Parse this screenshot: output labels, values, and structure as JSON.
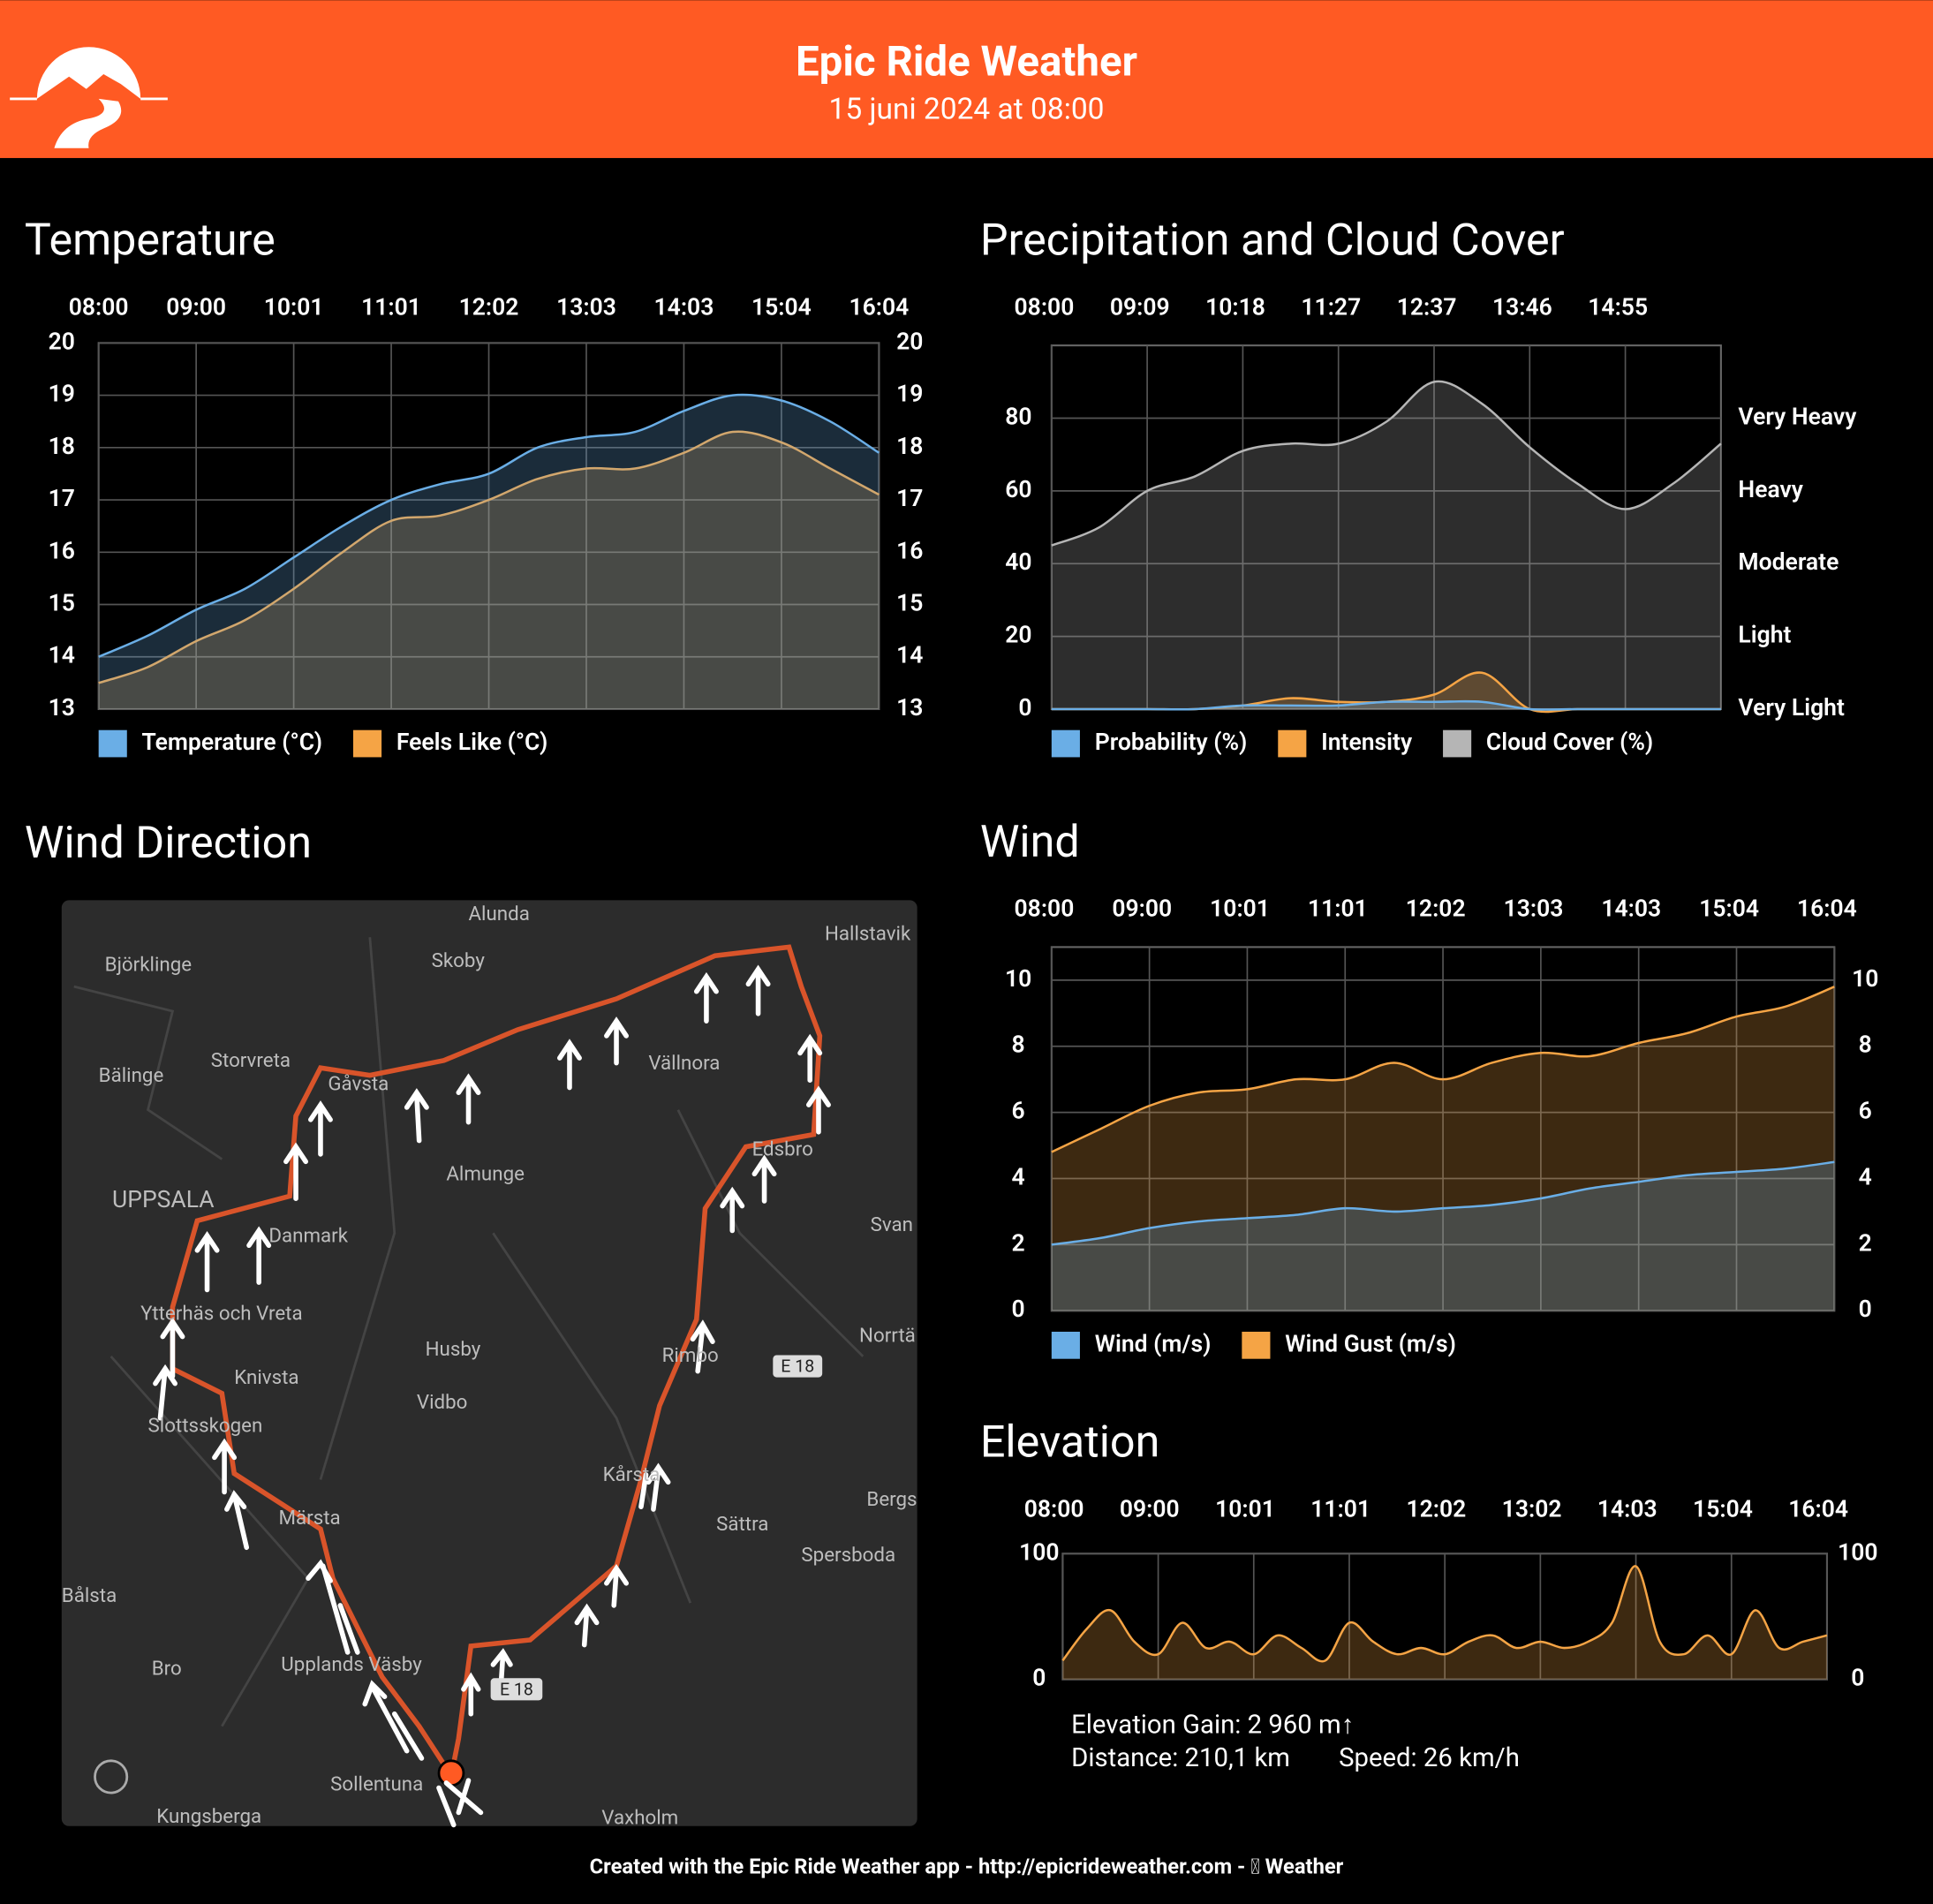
{
  "header": {
    "title": "Epic Ride Weather",
    "subtitle": "15 juni 2024 at 08:00"
  },
  "chart_data": [
    {
      "type": "line",
      "title": "Temperature",
      "categories": [
        "08:00",
        null,
        "09:00",
        null,
        "10:01",
        null,
        "11:01",
        null,
        "12:02",
        null,
        "13:03",
        null,
        "14:03",
        null,
        "15:04",
        null,
        "16:04"
      ],
      "series": [
        {
          "name": "Temperature (°C)",
          "color": "#6aaee6",
          "values": [
            14.0,
            14.4,
            14.9,
            15.3,
            15.9,
            16.5,
            17.0,
            17.3,
            17.5,
            18.0,
            18.2,
            18.3,
            18.7,
            19.0,
            18.9,
            18.5,
            17.9
          ]
        },
        {
          "name": "Feels Like (°C)",
          "color": "#f5a445",
          "values": [
            13.5,
            13.8,
            14.3,
            14.7,
            15.3,
            16.0,
            16.6,
            16.7,
            17.0,
            17.4,
            17.6,
            17.6,
            17.9,
            18.3,
            18.1,
            17.6,
            17.1
          ]
        }
      ],
      "ylim": [
        13,
        20
      ],
      "yticks": [
        13,
        14,
        15,
        16,
        17,
        18,
        19,
        20
      ],
      "y2lim": [
        13,
        20
      ],
      "y2ticks": [
        13,
        14,
        15,
        16,
        17,
        18,
        19,
        20
      ],
      "grid": true
    },
    {
      "type": "line",
      "title": "Precipitation and Cloud Cover",
      "categories": [
        "08:00",
        null,
        "09:09",
        null,
        "10:18",
        null,
        "11:27",
        null,
        "12:37",
        null,
        "13:46",
        null,
        "14:55",
        null,
        null
      ],
      "series": [
        {
          "name": "Probability (%)",
          "color": "#6aaee6",
          "values": [
            0,
            0,
            0,
            0,
            1,
            1,
            1,
            2,
            2,
            2,
            0,
            0,
            0,
            0,
            0
          ]
        },
        {
          "name": "Intensity",
          "color": "#f5a445",
          "values": [
            0,
            0,
            0,
            0,
            1,
            3,
            2,
            2,
            4,
            10,
            0,
            0,
            0,
            0,
            0
          ]
        },
        {
          "name": "Cloud Cover (%)",
          "color": "#b5b5b5",
          "values": [
            45,
            50,
            60,
            64,
            71,
            73,
            73,
            79,
            90,
            84,
            72,
            62,
            55,
            62,
            73
          ]
        }
      ],
      "ylim": [
        0,
        100
      ],
      "yticks": [
        0,
        20,
        40,
        60,
        80
      ],
      "y2lim": [
        0,
        100
      ],
      "y2ticks": [
        {
          "value": 0,
          "label": "Very Light"
        },
        {
          "value": 20,
          "label": "Light"
        },
        {
          "value": 40,
          "label": "Moderate"
        },
        {
          "value": 60,
          "label": "Heavy"
        },
        {
          "value": 80,
          "label": "Very Heavy"
        }
      ],
      "grid": true
    },
    {
      "type": "line",
      "title": "Wind",
      "categories": [
        "08:00",
        null,
        "09:00",
        null,
        "10:01",
        null,
        "11:01",
        null,
        "12:02",
        null,
        "13:03",
        null,
        "14:03",
        null,
        "15:04",
        null,
        "16:04"
      ],
      "series": [
        {
          "name": "Wind (m/s)",
          "color": "#6aaee6",
          "values": [
            2.0,
            2.2,
            2.5,
            2.7,
            2.8,
            2.9,
            3.1,
            3.0,
            3.1,
            3.2,
            3.4,
            3.7,
            3.9,
            4.1,
            4.2,
            4.3,
            4.5
          ]
        },
        {
          "name": "Wind Gust (m/s)",
          "color": "#f5a445",
          "values": [
            4.8,
            5.5,
            6.2,
            6.6,
            6.7,
            7.0,
            7.0,
            7.5,
            7.0,
            7.5,
            7.8,
            7.7,
            8.1,
            8.4,
            8.9,
            9.2,
            9.8
          ]
        }
      ],
      "ylim": [
        0,
        11
      ],
      "yticks": [
        0,
        2,
        4,
        6,
        8,
        10
      ],
      "y2lim": [
        0,
        11
      ],
      "y2ticks": [
        0,
        2,
        4,
        6,
        8,
        10
      ],
      "grid": true
    },
    {
      "type": "line",
      "title": "Elevation",
      "categories": [
        "08:00",
        null,
        null,
        null,
        "09:00",
        null,
        null,
        null,
        "10:01",
        null,
        null,
        null,
        "11:01",
        null,
        null,
        null,
        "12:02",
        null,
        null,
        null,
        "13:02",
        null,
        null,
        null,
        "14:03",
        null,
        null,
        null,
        "15:04",
        null,
        null,
        null,
        "16:04"
      ],
      "series": [
        {
          "color": "#f5a445",
          "values": [
            15,
            40,
            55,
            30,
            20,
            45,
            25,
            30,
            20,
            35,
            25,
            15,
            45,
            30,
            20,
            25,
            20,
            30,
            35,
            25,
            30,
            25,
            30,
            45,
            90,
            30,
            20,
            35,
            20,
            55,
            25,
            30,
            35
          ]
        }
      ],
      "ylim": [
        0,
        100
      ],
      "yticks": [
        0,
        100
      ],
      "y2lim": [
        0,
        100
      ],
      "y2ticks": [
        0,
        100
      ],
      "grid": true
    }
  ],
  "map": {
    "title": "Wind Direction",
    "labels": [
      "Alunda",
      "Hallstavik",
      "Björklinge",
      "Skoby",
      "Storvreta",
      "Bälinge",
      "Gåvsta",
      "Vällnora",
      "Almunge",
      "Edsbro",
      "UPPSALA",
      "Danmark",
      "Ytterhäs och Vreta",
      "Husby",
      "Rimbo",
      "E 18",
      "Knivsta",
      "Vidbo",
      "Slottsskogen",
      "Kårsta",
      "Märsta",
      "Sättra",
      "Spersboda",
      "Bålsta",
      "Bro",
      "Upplands Väsby",
      "E 18",
      "Sollentuna",
      "Kungsberga",
      "Vaxholm",
      "Norrtä",
      "Bergs",
      "Svan"
    ]
  },
  "stats": {
    "elevation": "Elevation Gain: 2 960 m↑",
    "distance": "Distance: 210,1 km",
    "speed": "Speed: 26 km/h"
  },
  "footer": "Created with the Epic Ride Weather app - http://epicrideweather.com -  Weather"
}
